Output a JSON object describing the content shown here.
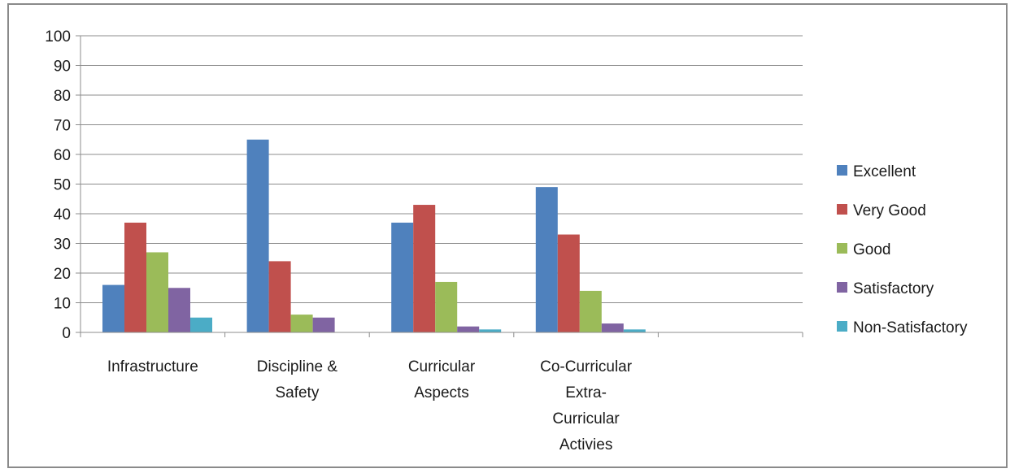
{
  "chart_data": {
    "type": "bar",
    "title": "",
    "xlabel": "",
    "ylabel": "",
    "ylim": [
      0,
      100
    ],
    "yticks": [
      0,
      10,
      20,
      30,
      40,
      50,
      60,
      70,
      80,
      90,
      100
    ],
    "grid": true,
    "legend_position": "right",
    "categories": [
      [
        "Infrastructure"
      ],
      [
        "Discipline &",
        "Safety"
      ],
      [
        "Curricular",
        "Aspects"
      ],
      [
        "Co-Curricular",
        "Extra-",
        "Curricular",
        "Activies"
      ],
      [
        ""
      ]
    ],
    "series": [
      {
        "name": "Excellent",
        "color": "#4f81bd",
        "values": [
          16,
          65,
          37,
          49,
          null
        ]
      },
      {
        "name": "Very Good",
        "color": "#c0504d",
        "values": [
          37,
          24,
          43,
          33,
          null
        ]
      },
      {
        "name": "Good",
        "color": "#9bbb59",
        "values": [
          27,
          6,
          17,
          14,
          null
        ]
      },
      {
        "name": "Satisfactory",
        "color": "#8064a2",
        "values": [
          15,
          5,
          2,
          3,
          null
        ]
      },
      {
        "name": "Non-Satisfactory",
        "color": "#4bacc6",
        "values": [
          5,
          null,
          1,
          1,
          null
        ]
      }
    ]
  }
}
